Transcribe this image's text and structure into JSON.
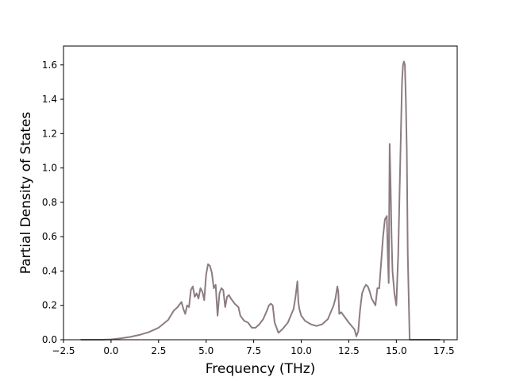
{
  "chart_data": {
    "type": "line",
    "title": "",
    "xlabel": "Frequency (THz)",
    "ylabel": "Partial Density of States",
    "xlim": [
      -2.5,
      18.2
    ],
    "ylim": [
      0.0,
      1.71
    ],
    "xticks": [
      -2.5,
      0.0,
      2.5,
      5.0,
      7.5,
      10.0,
      12.5,
      15.0,
      17.5
    ],
    "xtick_labels": [
      "−2.5",
      "0.0",
      "2.5",
      "5.0",
      "7.5",
      "10.0",
      "12.5",
      "15.0",
      "17.5"
    ],
    "yticks": [
      0.0,
      0.2,
      0.4,
      0.6,
      0.8,
      1.0,
      1.2,
      1.4,
      1.6
    ],
    "ytick_labels": [
      "0.0",
      "0.2",
      "0.4",
      "0.6",
      "0.8",
      "1.0",
      "1.2",
      "1.4",
      "1.6"
    ],
    "grid": false,
    "legend": "none",
    "series": [
      {
        "color": "#8c7c80",
        "x": [
          -1.6,
          -0.5,
          0.0,
          0.5,
          1.0,
          1.5,
          2.0,
          2.5,
          3.0,
          3.3,
          3.5,
          3.7,
          3.8,
          3.9,
          4.0,
          4.1,
          4.2,
          4.3,
          4.4,
          4.5,
          4.6,
          4.7,
          4.8,
          4.9,
          5.0,
          5.1,
          5.2,
          5.3,
          5.4,
          5.5,
          5.6,
          5.7,
          5.8,
          5.9,
          6.0,
          6.1,
          6.2,
          6.3,
          6.5,
          6.7,
          6.8,
          7.0,
          7.2,
          7.4,
          7.6,
          7.8,
          8.0,
          8.2,
          8.3,
          8.4,
          8.5,
          8.6,
          8.8,
          9.0,
          9.3,
          9.6,
          9.7,
          9.8,
          9.85,
          9.9,
          10.0,
          10.2,
          10.5,
          10.8,
          11.1,
          11.4,
          11.7,
          11.8,
          11.9,
          11.95,
          12.0,
          12.1,
          12.3,
          12.5,
          12.8,
          12.9,
          13.0,
          13.05,
          13.1,
          13.2,
          13.3,
          13.4,
          13.5,
          13.6,
          13.7,
          13.8,
          13.9,
          14.0,
          14.1,
          14.2,
          14.3,
          14.4,
          14.5,
          14.55,
          14.6,
          14.65,
          14.7,
          14.75,
          14.8,
          14.9,
          15.0,
          15.1,
          15.2,
          15.3,
          15.35,
          15.4,
          15.45,
          15.5,
          15.55,
          15.6,
          15.7,
          15.8,
          16.5,
          17.3
        ],
        "y": [
          0.0,
          0.0,
          0.002,
          0.008,
          0.016,
          0.028,
          0.045,
          0.07,
          0.115,
          0.17,
          0.19,
          0.22,
          0.18,
          0.15,
          0.2,
          0.19,
          0.29,
          0.31,
          0.25,
          0.27,
          0.24,
          0.3,
          0.28,
          0.23,
          0.38,
          0.44,
          0.43,
          0.39,
          0.3,
          0.32,
          0.14,
          0.27,
          0.3,
          0.29,
          0.19,
          0.25,
          0.26,
          0.24,
          0.21,
          0.19,
          0.14,
          0.11,
          0.1,
          0.07,
          0.07,
          0.09,
          0.12,
          0.17,
          0.2,
          0.21,
          0.2,
          0.1,
          0.04,
          0.06,
          0.1,
          0.18,
          0.25,
          0.34,
          0.22,
          0.18,
          0.14,
          0.11,
          0.09,
          0.08,
          0.09,
          0.12,
          0.2,
          0.24,
          0.31,
          0.28,
          0.15,
          0.16,
          0.13,
          0.1,
          0.06,
          0.02,
          0.05,
          0.12,
          0.18,
          0.27,
          0.3,
          0.32,
          0.31,
          0.28,
          0.24,
          0.22,
          0.2,
          0.3,
          0.3,
          0.45,
          0.6,
          0.7,
          0.72,
          0.5,
          0.33,
          1.14,
          0.9,
          0.6,
          0.4,
          0.27,
          0.2,
          0.5,
          1.0,
          1.5,
          1.6,
          1.62,
          1.6,
          1.4,
          1.1,
          0.5,
          0.0,
          0.0,
          0.0,
          0.0
        ]
      }
    ]
  }
}
